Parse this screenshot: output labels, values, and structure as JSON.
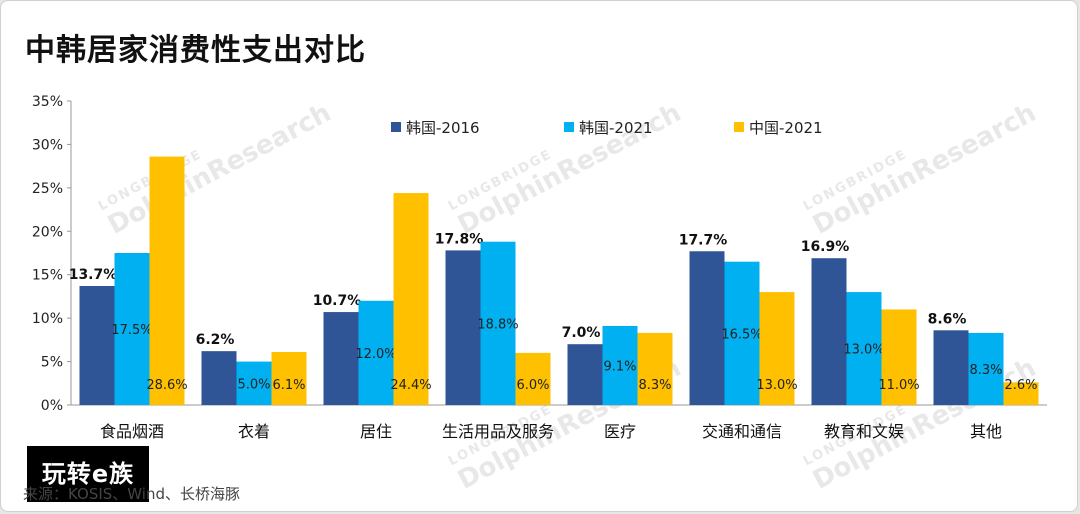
{
  "title": "中韩居家消费性支出对比",
  "watermark": {
    "brand": "LONGBRIDGE",
    "name": "DolphinResearch"
  },
  "logo": "玩转e族",
  "source": "来源：KOSIS、Wind、长桥海豚",
  "chart_data": {
    "type": "bar",
    "categories": [
      "食品烟酒",
      "衣着",
      "居住",
      "生活用品及服务",
      "医疗",
      "交通和通信",
      "教育和文娱",
      "其他"
    ],
    "series": [
      {
        "name": "韩国-2016",
        "color": "#2f5597",
        "values": [
          13.7,
          6.2,
          10.7,
          17.8,
          7.0,
          17.7,
          16.9,
          8.6
        ],
        "labels": [
          "13.7%",
          "6.2%",
          "10.7%",
          "17.8%",
          "7.0%",
          "17.7%",
          "16.9%",
          "8.6%"
        ]
      },
      {
        "name": "韩国-2021",
        "color": "#00b0f0",
        "values": [
          17.5,
          5.0,
          12.0,
          18.8,
          9.1,
          16.5,
          13.0,
          8.3
        ],
        "labels": [
          "17.5%",
          "5.0%",
          "12.0%",
          "18.8%",
          "9.1%",
          "16.5%",
          "13.0%",
          "8.3%"
        ]
      },
      {
        "name": "中国-2021",
        "color": "#ffc000",
        "values": [
          28.6,
          6.1,
          24.4,
          6.0,
          8.3,
          13.0,
          11.0,
          2.6
        ],
        "labels": [
          "28.6%",
          "6.1%",
          "24.4%",
          "6.0%",
          "8.3%",
          "13.0%",
          "11.0%",
          "2.6%"
        ]
      }
    ],
    "ylim": [
      0,
      35
    ],
    "yticks": [
      "0%",
      "5%",
      "10%",
      "15%",
      "20%",
      "25%",
      "30%",
      "35%"
    ],
    "legend": "top",
    "grid": false
  }
}
